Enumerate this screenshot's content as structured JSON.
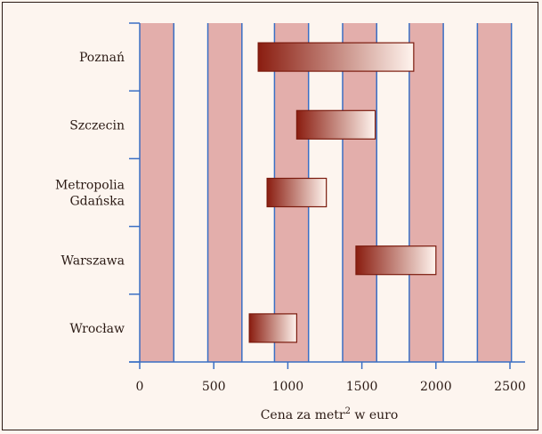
{
  "chart_data": {
    "type": "bar",
    "orientation": "horizontal-range",
    "categories": [
      "Poznań",
      "Szczecin",
      "Metropolia Gdańska",
      "Warszawa",
      "Wrocław"
    ],
    "category_lines": [
      [
        "Poznań"
      ],
      [
        "Szczecin"
      ],
      [
        "Metropolia",
        "Gdańska"
      ],
      [
        "Warszawa"
      ],
      [
        "Wrocław"
      ]
    ],
    "ranges": [
      {
        "category": "Poznań",
        "min": 800,
        "max": 1850
      },
      {
        "category": "Szczecin",
        "min": 1060,
        "max": 1590
      },
      {
        "category": "Metropolia Gdańska",
        "min": 860,
        "max": 1260
      },
      {
        "category": "Warszawa",
        "min": 1460,
        "max": 2000
      },
      {
        "category": "Wrocław",
        "min": 740,
        "max": 1060
      }
    ],
    "x_ticks": [
      "0",
      "500",
      "1000",
      "1500",
      "2000",
      "2500"
    ],
    "x_tick_values": [
      0,
      500,
      1000,
      1500,
      2000,
      2500
    ],
    "xlim": [
      0,
      2600
    ],
    "xlabel": "Cena za metr",
    "xlabel_sup": "2",
    "xlabel_suffix": " w euro",
    "ylabel": "",
    "title": "",
    "background_stripes": [
      [
        0,
        230
      ],
      [
        460,
        690
      ],
      [
        910,
        1140
      ],
      [
        1370,
        1600
      ],
      [
        1820,
        2050
      ],
      [
        2280,
        2510
      ]
    ],
    "colors": {
      "stripe": "#e3aeab",
      "gridline": "#3a6fc4",
      "axis": "#3a6fc4",
      "bar_dark": "#8a1d10",
      "bar_light": "#fff4ee",
      "bar_border": "#7a1a0d",
      "background": "#fdf5ef"
    }
  }
}
